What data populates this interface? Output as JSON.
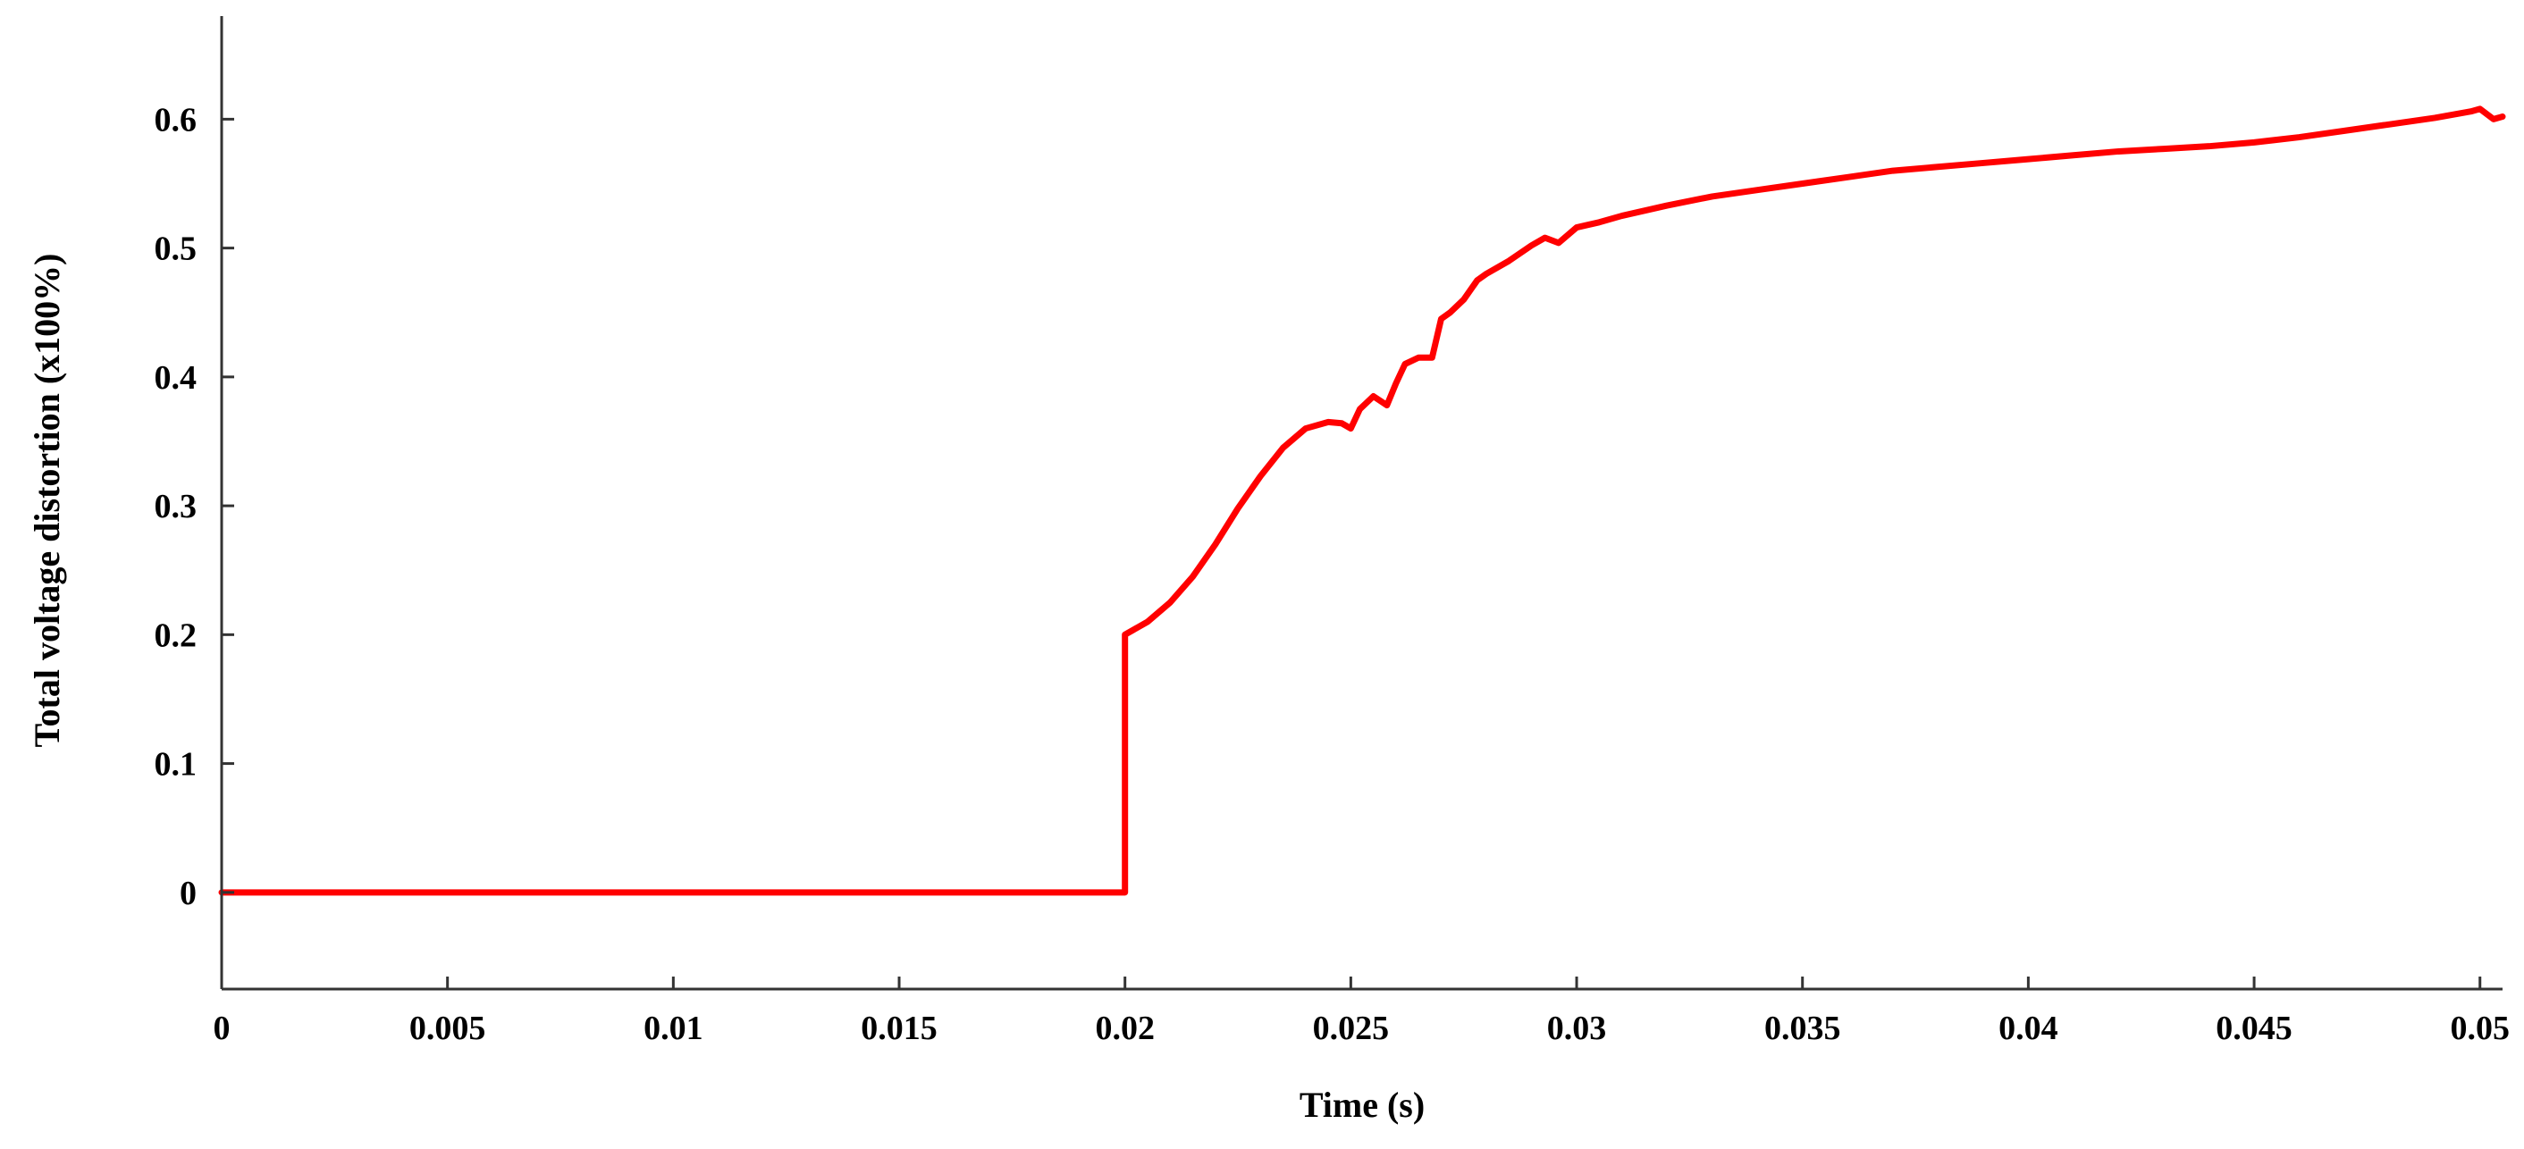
{
  "chart_data": {
    "type": "line",
    "title": "",
    "xlabel": "Time (s)",
    "ylabel": "Total voltage distortion (x100%)",
    "xlim": [
      0,
      0.0505
    ],
    "ylim": [
      -0.075,
      0.68
    ],
    "grid": false,
    "legend": "none",
    "x_ticks": [
      0,
      0.005,
      0.01,
      0.015,
      0.02,
      0.025,
      0.03,
      0.035,
      0.04,
      0.045,
      0.05
    ],
    "x_tick_labels": [
      "0",
      "0.005",
      "0.01",
      "0.015",
      "0.02",
      "0.025",
      "0.03",
      "0.035",
      "0.04",
      "0.045",
      "0.05"
    ],
    "y_ticks": [
      0,
      0.1,
      0.2,
      0.3,
      0.4,
      0.5,
      0.6
    ],
    "y_tick_labels": [
      "0",
      "0.1",
      "0.2",
      "0.3",
      "0.4",
      "0.5",
      "0.6"
    ],
    "series": [
      {
        "color": "#ff0000",
        "x": [
          0,
          0.005,
          0.01,
          0.015,
          0.0199,
          0.02,
          0.02,
          0.0205,
          0.021,
          0.0215,
          0.022,
          0.0225,
          0.023,
          0.0235,
          0.024,
          0.0245,
          0.0248,
          0.025,
          0.0252,
          0.0255,
          0.0258,
          0.026,
          0.0262,
          0.0265,
          0.0268,
          0.027,
          0.0272,
          0.0275,
          0.0278,
          0.028,
          0.0285,
          0.029,
          0.0293,
          0.0296,
          0.03,
          0.0305,
          0.031,
          0.032,
          0.033,
          0.034,
          0.035,
          0.036,
          0.037,
          0.038,
          0.039,
          0.04,
          0.041,
          0.042,
          0.043,
          0.044,
          0.045,
          0.046,
          0.047,
          0.048,
          0.049,
          0.0498,
          0.05,
          0.0503,
          0.0505
        ],
        "y": [
          0,
          0,
          0,
          0,
          0,
          0,
          0.2,
          0.21,
          0.225,
          0.245,
          0.27,
          0.298,
          0.323,
          0.345,
          0.36,
          0.365,
          0.364,
          0.36,
          0.375,
          0.385,
          0.378,
          0.395,
          0.41,
          0.415,
          0.415,
          0.445,
          0.45,
          0.46,
          0.475,
          0.48,
          0.49,
          0.502,
          0.508,
          0.504,
          0.516,
          0.52,
          0.525,
          0.533,
          0.54,
          0.545,
          0.55,
          0.555,
          0.56,
          0.563,
          0.566,
          0.569,
          0.572,
          0.575,
          0.577,
          0.579,
          0.582,
          0.586,
          0.591,
          0.596,
          0.601,
          0.606,
          0.608,
          0.6,
          0.602
        ]
      }
    ]
  }
}
